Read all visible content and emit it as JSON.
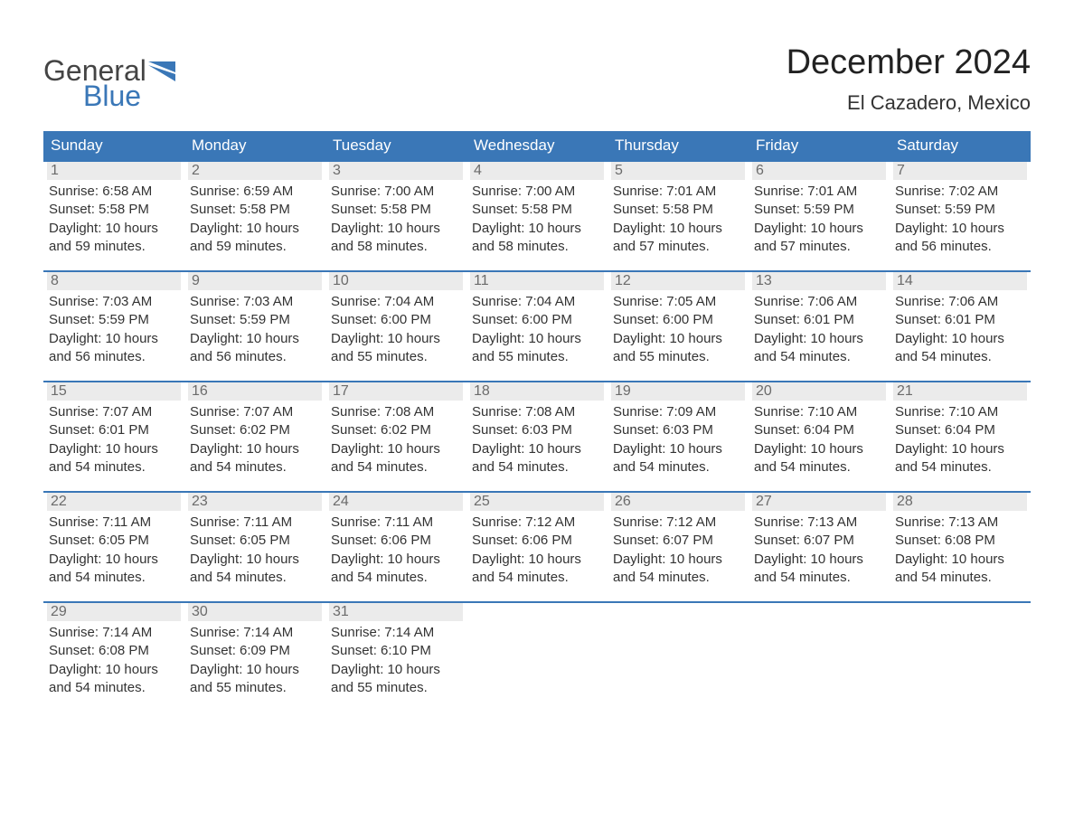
{
  "logo": {
    "text_top": "General",
    "text_bottom": "Blue",
    "shape_color": "#3a77b7",
    "top_color": "#444444"
  },
  "title": "December 2024",
  "location": "El Cazadero, Mexico",
  "colors": {
    "header_bg": "#3a77b7",
    "header_text": "#ffffff",
    "daynum_bg": "#ebebeb",
    "daynum_text": "#6b6b6b",
    "body_text": "#333333",
    "page_bg": "#ffffff",
    "row_border": "#3a77b7"
  },
  "typography": {
    "title_fontsize": 38,
    "location_fontsize": 22,
    "header_fontsize": 17,
    "daynum_fontsize": 16,
    "body_fontsize": 15,
    "font_family": "Arial"
  },
  "calendar": {
    "type": "table",
    "columns": [
      "Sunday",
      "Monday",
      "Tuesday",
      "Wednesday",
      "Thursday",
      "Friday",
      "Saturday"
    ],
    "weeks": [
      [
        {
          "day": "1",
          "sunrise": "Sunrise: 6:58 AM",
          "sunset": "Sunset: 5:58 PM",
          "daylight1": "Daylight: 10 hours",
          "daylight2": "and 59 minutes."
        },
        {
          "day": "2",
          "sunrise": "Sunrise: 6:59 AM",
          "sunset": "Sunset: 5:58 PM",
          "daylight1": "Daylight: 10 hours",
          "daylight2": "and 59 minutes."
        },
        {
          "day": "3",
          "sunrise": "Sunrise: 7:00 AM",
          "sunset": "Sunset: 5:58 PM",
          "daylight1": "Daylight: 10 hours",
          "daylight2": "and 58 minutes."
        },
        {
          "day": "4",
          "sunrise": "Sunrise: 7:00 AM",
          "sunset": "Sunset: 5:58 PM",
          "daylight1": "Daylight: 10 hours",
          "daylight2": "and 58 minutes."
        },
        {
          "day": "5",
          "sunrise": "Sunrise: 7:01 AM",
          "sunset": "Sunset: 5:58 PM",
          "daylight1": "Daylight: 10 hours",
          "daylight2": "and 57 minutes."
        },
        {
          "day": "6",
          "sunrise": "Sunrise: 7:01 AM",
          "sunset": "Sunset: 5:59 PM",
          "daylight1": "Daylight: 10 hours",
          "daylight2": "and 57 minutes."
        },
        {
          "day": "7",
          "sunrise": "Sunrise: 7:02 AM",
          "sunset": "Sunset: 5:59 PM",
          "daylight1": "Daylight: 10 hours",
          "daylight2": "and 56 minutes."
        }
      ],
      [
        {
          "day": "8",
          "sunrise": "Sunrise: 7:03 AM",
          "sunset": "Sunset: 5:59 PM",
          "daylight1": "Daylight: 10 hours",
          "daylight2": "and 56 minutes."
        },
        {
          "day": "9",
          "sunrise": "Sunrise: 7:03 AM",
          "sunset": "Sunset: 5:59 PM",
          "daylight1": "Daylight: 10 hours",
          "daylight2": "and 56 minutes."
        },
        {
          "day": "10",
          "sunrise": "Sunrise: 7:04 AM",
          "sunset": "Sunset: 6:00 PM",
          "daylight1": "Daylight: 10 hours",
          "daylight2": "and 55 minutes."
        },
        {
          "day": "11",
          "sunrise": "Sunrise: 7:04 AM",
          "sunset": "Sunset: 6:00 PM",
          "daylight1": "Daylight: 10 hours",
          "daylight2": "and 55 minutes."
        },
        {
          "day": "12",
          "sunrise": "Sunrise: 7:05 AM",
          "sunset": "Sunset: 6:00 PM",
          "daylight1": "Daylight: 10 hours",
          "daylight2": "and 55 minutes."
        },
        {
          "day": "13",
          "sunrise": "Sunrise: 7:06 AM",
          "sunset": "Sunset: 6:01 PM",
          "daylight1": "Daylight: 10 hours",
          "daylight2": "and 54 minutes."
        },
        {
          "day": "14",
          "sunrise": "Sunrise: 7:06 AM",
          "sunset": "Sunset: 6:01 PM",
          "daylight1": "Daylight: 10 hours",
          "daylight2": "and 54 minutes."
        }
      ],
      [
        {
          "day": "15",
          "sunrise": "Sunrise: 7:07 AM",
          "sunset": "Sunset: 6:01 PM",
          "daylight1": "Daylight: 10 hours",
          "daylight2": "and 54 minutes."
        },
        {
          "day": "16",
          "sunrise": "Sunrise: 7:07 AM",
          "sunset": "Sunset: 6:02 PM",
          "daylight1": "Daylight: 10 hours",
          "daylight2": "and 54 minutes."
        },
        {
          "day": "17",
          "sunrise": "Sunrise: 7:08 AM",
          "sunset": "Sunset: 6:02 PM",
          "daylight1": "Daylight: 10 hours",
          "daylight2": "and 54 minutes."
        },
        {
          "day": "18",
          "sunrise": "Sunrise: 7:08 AM",
          "sunset": "Sunset: 6:03 PM",
          "daylight1": "Daylight: 10 hours",
          "daylight2": "and 54 minutes."
        },
        {
          "day": "19",
          "sunrise": "Sunrise: 7:09 AM",
          "sunset": "Sunset: 6:03 PM",
          "daylight1": "Daylight: 10 hours",
          "daylight2": "and 54 minutes."
        },
        {
          "day": "20",
          "sunrise": "Sunrise: 7:10 AM",
          "sunset": "Sunset: 6:04 PM",
          "daylight1": "Daylight: 10 hours",
          "daylight2": "and 54 minutes."
        },
        {
          "day": "21",
          "sunrise": "Sunrise: 7:10 AM",
          "sunset": "Sunset: 6:04 PM",
          "daylight1": "Daylight: 10 hours",
          "daylight2": "and 54 minutes."
        }
      ],
      [
        {
          "day": "22",
          "sunrise": "Sunrise: 7:11 AM",
          "sunset": "Sunset: 6:05 PM",
          "daylight1": "Daylight: 10 hours",
          "daylight2": "and 54 minutes."
        },
        {
          "day": "23",
          "sunrise": "Sunrise: 7:11 AM",
          "sunset": "Sunset: 6:05 PM",
          "daylight1": "Daylight: 10 hours",
          "daylight2": "and 54 minutes."
        },
        {
          "day": "24",
          "sunrise": "Sunrise: 7:11 AM",
          "sunset": "Sunset: 6:06 PM",
          "daylight1": "Daylight: 10 hours",
          "daylight2": "and 54 minutes."
        },
        {
          "day": "25",
          "sunrise": "Sunrise: 7:12 AM",
          "sunset": "Sunset: 6:06 PM",
          "daylight1": "Daylight: 10 hours",
          "daylight2": "and 54 minutes."
        },
        {
          "day": "26",
          "sunrise": "Sunrise: 7:12 AM",
          "sunset": "Sunset: 6:07 PM",
          "daylight1": "Daylight: 10 hours",
          "daylight2": "and 54 minutes."
        },
        {
          "day": "27",
          "sunrise": "Sunrise: 7:13 AM",
          "sunset": "Sunset: 6:07 PM",
          "daylight1": "Daylight: 10 hours",
          "daylight2": "and 54 minutes."
        },
        {
          "day": "28",
          "sunrise": "Sunrise: 7:13 AM",
          "sunset": "Sunset: 6:08 PM",
          "daylight1": "Daylight: 10 hours",
          "daylight2": "and 54 minutes."
        }
      ],
      [
        {
          "day": "29",
          "sunrise": "Sunrise: 7:14 AM",
          "sunset": "Sunset: 6:08 PM",
          "daylight1": "Daylight: 10 hours",
          "daylight2": "and 54 minutes."
        },
        {
          "day": "30",
          "sunrise": "Sunrise: 7:14 AM",
          "sunset": "Sunset: 6:09 PM",
          "daylight1": "Daylight: 10 hours",
          "daylight2": "and 55 minutes."
        },
        {
          "day": "31",
          "sunrise": "Sunrise: 7:14 AM",
          "sunset": "Sunset: 6:10 PM",
          "daylight1": "Daylight: 10 hours",
          "daylight2": "and 55 minutes."
        },
        null,
        null,
        null,
        null
      ]
    ]
  }
}
